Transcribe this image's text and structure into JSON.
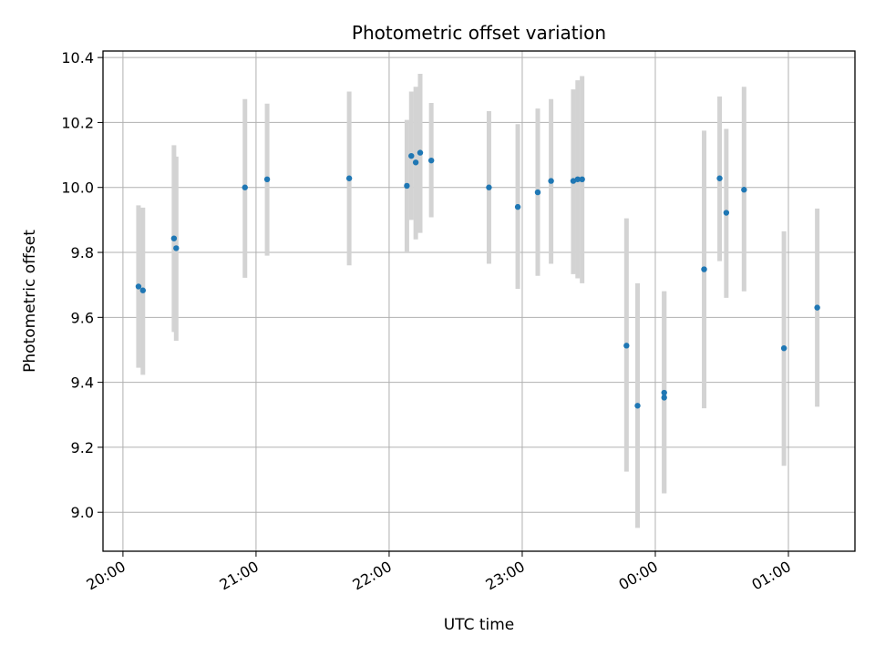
{
  "chart_data": {
    "type": "scatter",
    "title": "Photometric offset variation",
    "xlabel": "UTC time",
    "ylabel": "Photometric offset",
    "x_axis_type": "time",
    "x_ticks": [
      "20:00",
      "21:00",
      "22:00",
      "23:00",
      "00:00",
      "01:00"
    ],
    "x_tick_times": [
      "2000-01-01T20:00",
      "2000-01-01T21:00",
      "2000-01-01T22:00",
      "2000-01-01T23:00",
      "2000-01-02T00:00",
      "2000-01-02T01:00"
    ],
    "x_tick_rotation": 30,
    "xlim": [
      "2000-01-01T19:51",
      "2000-01-02T01:30"
    ],
    "ylim": [
      8.88,
      10.42
    ],
    "y_ticks": [
      9.0,
      9.2,
      9.4,
      9.6,
      9.8,
      10.0,
      10.2,
      10.4
    ],
    "y_tick_labels": [
      "9.0",
      "9.2",
      "9.4",
      "9.6",
      "9.8",
      "10.0",
      "10.2",
      "10.4"
    ],
    "grid": true,
    "marker_color": "#1f77b4",
    "errorbar_color": "#d3d3d3",
    "series": [
      {
        "points": [
          {
            "t": "2000-01-01T20:07",
            "y": 9.695,
            "low": 9.445,
            "high": 9.945
          },
          {
            "t": "2000-01-01T20:09",
            "y": 9.683,
            "low": 9.423,
            "high": 9.938
          },
          {
            "t": "2000-01-01T20:23",
            "y": 9.843,
            "low": 9.555,
            "high": 10.13
          },
          {
            "t": "2000-01-01T20:24",
            "y": 9.813,
            "low": 9.528,
            "high": 10.095
          },
          {
            "t": "2000-01-01T20:55",
            "y": 10.0,
            "low": 9.722,
            "high": 10.272
          },
          {
            "t": "2000-01-01T21:05",
            "y": 10.025,
            "low": 9.79,
            "high": 10.258
          },
          {
            "t": "2000-01-01T21:42",
            "y": 10.028,
            "low": 9.76,
            "high": 10.295
          },
          {
            "t": "2000-01-01T22:08",
            "y": 10.005,
            "low": 9.8,
            "high": 10.208
          },
          {
            "t": "2000-01-01T22:10",
            "y": 10.097,
            "low": 9.9,
            "high": 10.295
          },
          {
            "t": "2000-01-01T22:12",
            "y": 10.077,
            "low": 9.84,
            "high": 10.31
          },
          {
            "t": "2000-01-01T22:14",
            "y": 10.107,
            "low": 9.86,
            "high": 10.35
          },
          {
            "t": "2000-01-01T22:19",
            "y": 10.083,
            "low": 9.908,
            "high": 10.26
          },
          {
            "t": "2000-01-01T22:45",
            "y": 10.0,
            "low": 9.765,
            "high": 10.235
          },
          {
            "t": "2000-01-01T22:58",
            "y": 9.94,
            "low": 9.688,
            "high": 10.195
          },
          {
            "t": "2000-01-01T23:07",
            "y": 9.985,
            "low": 9.728,
            "high": 10.243
          },
          {
            "t": "2000-01-01T23:13",
            "y": 10.02,
            "low": 9.765,
            "high": 10.272
          },
          {
            "t": "2000-01-01T23:23",
            "y": 10.02,
            "low": 9.733,
            "high": 10.302
          },
          {
            "t": "2000-01-01T23:25",
            "y": 10.025,
            "low": 9.72,
            "high": 10.33
          },
          {
            "t": "2000-01-01T23:27",
            "y": 10.025,
            "low": 9.705,
            "high": 10.343
          },
          {
            "t": "2000-01-01T23:47",
            "y": 9.513,
            "low": 9.125,
            "high": 9.905
          },
          {
            "t": "2000-01-01T23:52",
            "y": 9.328,
            "low": 8.952,
            "high": 9.705
          },
          {
            "t": "2000-01-02T00:04",
            "y": 9.353,
            "low": 9.058,
            "high": 9.68
          },
          {
            "t": "2000-01-02T00:04",
            "y": 9.368,
            "low": 9.058,
            "high": 9.68
          },
          {
            "t": "2000-01-02T00:22",
            "y": 9.748,
            "low": 9.32,
            "high": 10.175
          },
          {
            "t": "2000-01-02T00:29",
            "y": 10.028,
            "low": 9.773,
            "high": 10.28
          },
          {
            "t": "2000-01-02T00:32",
            "y": 9.922,
            "low": 9.66,
            "high": 10.18
          },
          {
            "t": "2000-01-02T00:40",
            "y": 9.993,
            "low": 9.68,
            "high": 10.31
          },
          {
            "t": "2000-01-02T00:58",
            "y": 9.505,
            "low": 9.143,
            "high": 9.865
          },
          {
            "t": "2000-01-02T01:13",
            "y": 9.63,
            "low": 9.325,
            "high": 9.935
          }
        ]
      }
    ]
  }
}
